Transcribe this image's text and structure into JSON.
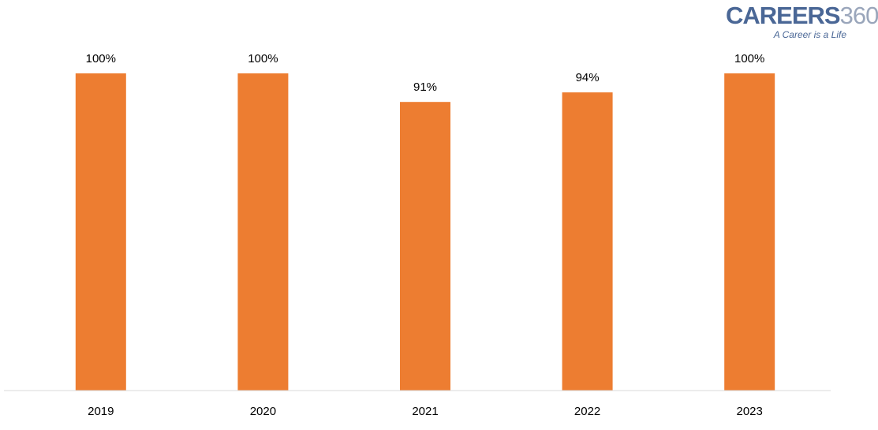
{
  "logo": {
    "brand": "CAREERS",
    "number": "360",
    "tagline": "A Career is a Life",
    "brand_color": "#4a6796",
    "number_color": "#9aa6bb"
  },
  "chart_data": {
    "type": "bar",
    "categories": [
      "2019",
      "2020",
      "2021",
      "2022",
      "2023"
    ],
    "values": [
      100,
      100,
      91,
      94,
      100
    ],
    "data_labels": [
      "100%",
      "100%",
      "91%",
      "94%",
      "100%"
    ],
    "title": "",
    "xlabel": "",
    "ylabel": "",
    "ylim": [
      0,
      100
    ],
    "y_axis_visible": false,
    "grid": false,
    "legend": "none",
    "bar_color": "#ed7d31",
    "axis_color": "#d9d9d9"
  }
}
